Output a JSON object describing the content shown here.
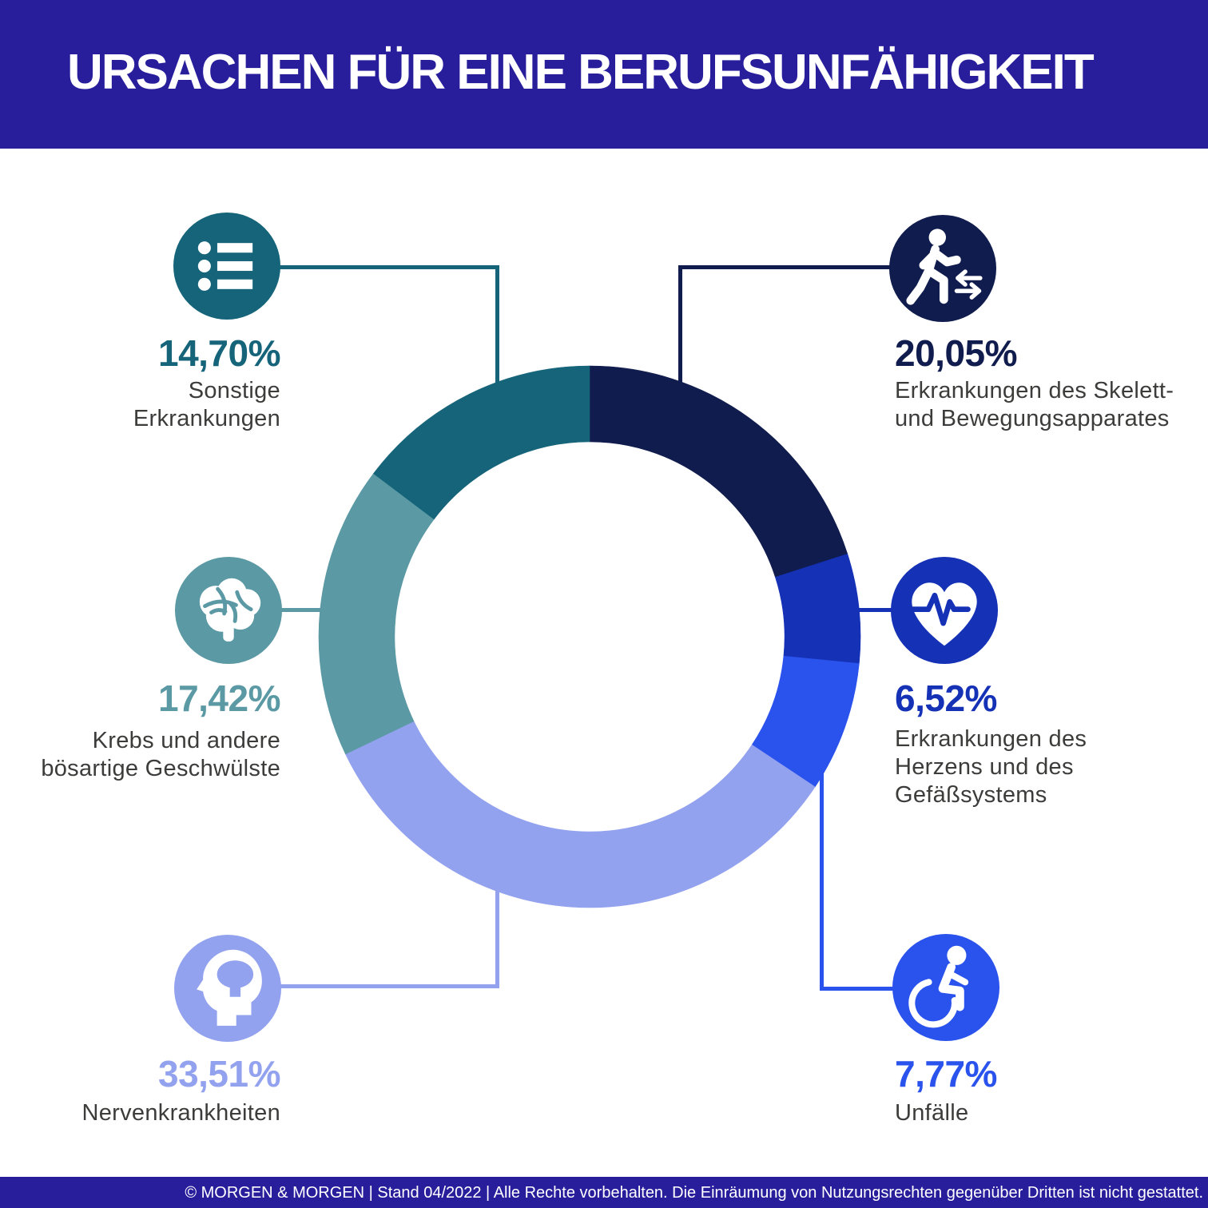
{
  "header": {
    "title": "URSACHEN FÜR EINE BERUFSUNFÄHIGKEIT",
    "bg": "#281E9C"
  },
  "footer": {
    "text": "© MORGEN & MORGEN | Stand 04/2022 | Alle Rechte vorbehalten. Die Einräumung von Nutzungsrechten gegenüber Dritten ist nicht gestattet.",
    "bg": "#281E9C"
  },
  "callouts": [
    {
      "id": "sonstige",
      "pct": "14,70%",
      "label": "Sonstige\nErkrankungen",
      "color": "#15647A",
      "icon": "list-icon",
      "side": "left-top"
    },
    {
      "id": "krebs",
      "pct": "17,42%",
      "label": "Krebs und andere\nbösartige Geschwülste",
      "color": "#5B99A4",
      "icon": "brain-icon",
      "side": "left-middle"
    },
    {
      "id": "nerven",
      "pct": "33,51%",
      "label": "Nervenkrankheiten",
      "color": "#93A2EF",
      "icon": "head-profile-icon",
      "side": "left-bottom"
    },
    {
      "id": "skelett",
      "pct": "20,05%",
      "label": "Erkrankungen des Skelett-\nund Bewegungsapparates",
      "color": "#101C4D",
      "icon": "walking-person-icon",
      "side": "right-top"
    },
    {
      "id": "herz",
      "pct": "6,52%",
      "label": "Erkrankungen des\nHerzens und des\nGefäßsystems",
      "color": "#1531B6",
      "icon": "heart-pulse-icon",
      "side": "right-middle"
    },
    {
      "id": "unfaelle",
      "pct": "7,77%",
      "label": "Unfälle",
      "color": "#2A52EC",
      "icon": "wheelchair-icon",
      "side": "right-bottom"
    }
  ],
  "chart_data": {
    "type": "pie",
    "donut": true,
    "title": "URSACHEN FÜR EINE BERUFSUNFÄHIGKEIT",
    "segment_ids": [
      "skelett",
      "herz",
      "unfaelle",
      "nerven",
      "krebs",
      "sonstige"
    ],
    "categories": [
      "Erkrankungen des Skelett- und Bewegungsapparates",
      "Erkrankungen des Herzens und des Gefäßsystems",
      "Unfälle",
      "Nervenkrankheiten",
      "Krebs und andere bösartige Geschwülste",
      "Sonstige Erkrankungen"
    ],
    "values": [
      20.05,
      6.52,
      7.77,
      33.51,
      17.42,
      14.7
    ],
    "value_labels": [
      "20,05%",
      "6,52%",
      "7,77%",
      "33,51%",
      "17,42%",
      "14,70%"
    ],
    "colors": [
      "#101C4D",
      "#1531B6",
      "#2A52EC",
      "#93A2EF",
      "#5B99A4",
      "#15647A"
    ],
    "start_angle_deg": 0,
    "direction": "clockwise",
    "inner_radius_ratio": 0.72,
    "legend": "none"
  }
}
